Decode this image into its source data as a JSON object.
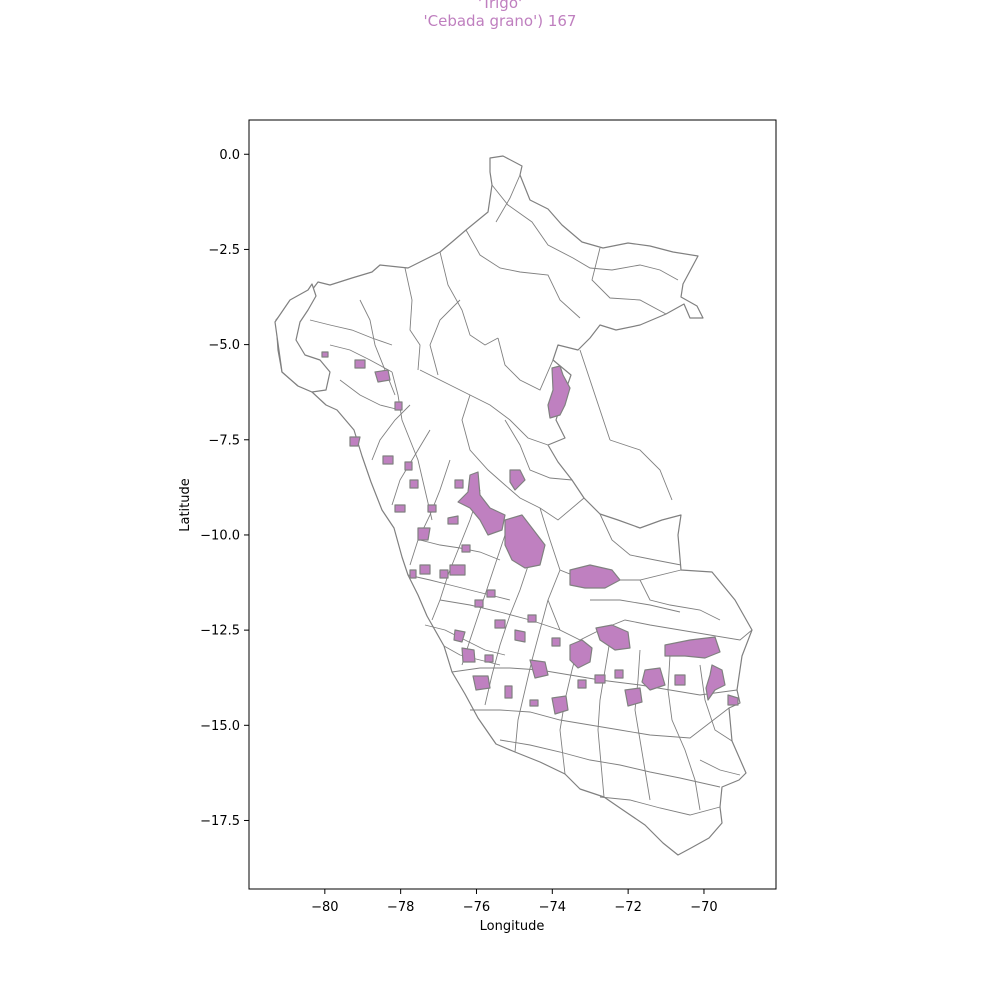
{
  "title_lines": [
    "'Trigo'",
    "'Cebada grano') 167"
  ],
  "colors": {
    "highlight": "#bf80c0",
    "boundary": "#808080",
    "title": "#bf7fbf"
  },
  "axes": {
    "xlabel": "Longitude",
    "ylabel": "Latitude",
    "xlim": [
      -82.0,
      -68.1
    ],
    "ylim": [
      -19.3,
      0.9
    ],
    "xticks": [
      -80,
      -78,
      -76,
      -74,
      -72,
      -70
    ],
    "yticks": [
      0.0,
      -2.5,
      -5.0,
      -7.5,
      -10.0,
      -12.5,
      -15.0,
      -17.5
    ],
    "xtick_labels": [
      "−80",
      "−78",
      "−76",
      "−74",
      "−72",
      "−70"
    ],
    "ytick_labels": [
      "0.0",
      "−2.5",
      "−5.0",
      "−7.5",
      "−10.0",
      "−12.5",
      "−15.0",
      "−17.5"
    ]
  },
  "map": {
    "country": "Peru",
    "legend": "none",
    "highlighted_count": 167
  }
}
